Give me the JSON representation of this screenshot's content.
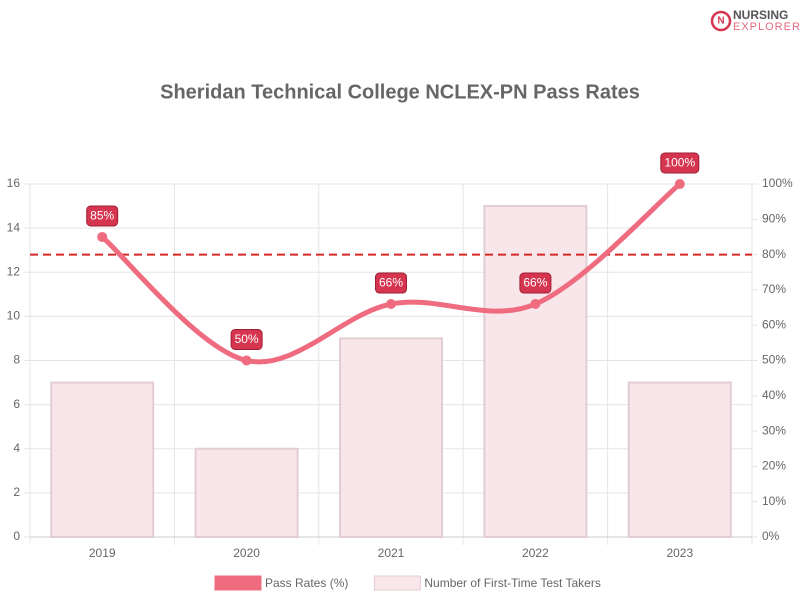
{
  "logo": {
    "line1": "NURSING",
    "line2": "EXPLORER"
  },
  "chart_data": {
    "type": "bar",
    "title": "Sheridan Technical College NCLEX-PN Pass Rates",
    "categories": [
      "2019",
      "2020",
      "2021",
      "2022",
      "2023"
    ],
    "series": [
      {
        "name": "Pass Rates (%)",
        "type": "line",
        "axis": "y2",
        "color": "#ef6c80",
        "values": [
          85,
          50,
          66,
          66,
          100
        ],
        "value_labels": [
          "85%",
          "50%",
          "66%",
          "66%",
          "100%"
        ]
      },
      {
        "name": "Number of First-Time Test Takers",
        "type": "bar",
        "axis": "y",
        "color": "#f9e6ea",
        "values": [
          7,
          4,
          9,
          15,
          7
        ]
      }
    ],
    "ylim": [
      0,
      16
    ],
    "yticks": [
      0,
      2,
      4,
      6,
      8,
      10,
      12,
      14,
      16
    ],
    "y2lim": [
      0,
      100
    ],
    "y2ticks": [
      {
        "value": 0,
        "label": "0%"
      },
      {
        "value": 10,
        "label": "10%"
      },
      {
        "value": 20,
        "label": "20%"
      },
      {
        "value": 30,
        "label": "30%"
      },
      {
        "value": 40,
        "label": "40%"
      },
      {
        "value": 50,
        "label": "50%"
      },
      {
        "value": 60,
        "label": "60%"
      },
      {
        "value": 70,
        "label": "70%"
      },
      {
        "value": 80,
        "label": "80%"
      },
      {
        "value": 90,
        "label": "90%"
      },
      {
        "value": 100,
        "label": "100%"
      }
    ],
    "reference_line": {
      "value": 80,
      "axis": "y2",
      "color": "#d62728"
    },
    "grid": true,
    "legend": "bottom"
  }
}
